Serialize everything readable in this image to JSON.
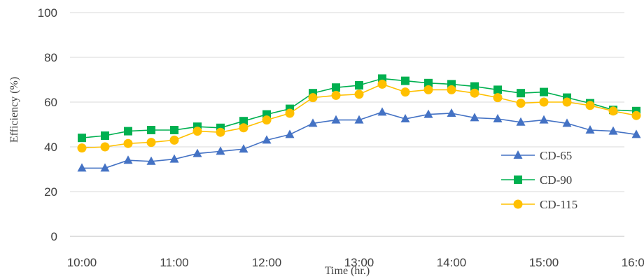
{
  "chart_data": {
    "type": "line",
    "xlabel": "Time (hr.)",
    "ylabel": "Efficiency (%)",
    "ylim": [
      0,
      100
    ],
    "yticks": [
      0,
      20,
      40,
      60,
      80,
      100
    ],
    "xlim": [
      10,
      16
    ],
    "xticks": [
      {
        "x": 10,
        "label": "10:00"
      },
      {
        "x": 11,
        "label": "11:00"
      },
      {
        "x": 12,
        "label": "12:00"
      },
      {
        "x": 13,
        "label": "13:00"
      },
      {
        "x": 14,
        "label": "14:00"
      },
      {
        "x": 15,
        "label": "15:00"
      },
      {
        "x": 16,
        "label": "16:00"
      }
    ],
    "grid": "horizontal",
    "legend_position": "bottom-right",
    "x": [
      10,
      10.25,
      10.5,
      10.75,
      11,
      11.25,
      11.5,
      11.75,
      12,
      12.25,
      12.5,
      12.75,
      13,
      13.25,
      13.5,
      13.75,
      14,
      14.25,
      14.5,
      14.75,
      15,
      15.25,
      15.5,
      15.75,
      16
    ],
    "series": [
      {
        "name": "CD-65",
        "color": "#4472C4",
        "marker": "triangle",
        "values": [
          30.5,
          30.5,
          34,
          33.5,
          34.5,
          37,
          38,
          39,
          43,
          45.5,
          50.5,
          52,
          52,
          55.5,
          52.5,
          54.5,
          55,
          53,
          52.5,
          51,
          52,
          50.5,
          47.5,
          47,
          45.5
        ]
      },
      {
        "name": "CD-90",
        "color": "#00B050",
        "marker": "square",
        "values": [
          44,
          45,
          47,
          47.5,
          47.5,
          49,
          48.5,
          51.5,
          54.5,
          57,
          64,
          66.5,
          67.5,
          70.5,
          69.5,
          68.5,
          68,
          67,
          65.5,
          64,
          64.5,
          62,
          59.5,
          56.5,
          56
        ]
      },
      {
        "name": "CD-115",
        "color": "#FFC000",
        "marker": "circle",
        "values": [
          39.5,
          40,
          41.5,
          42,
          43,
          47,
          46.5,
          48.5,
          52,
          55,
          62,
          63,
          63.5,
          68,
          64.5,
          65.5,
          65.5,
          64,
          62,
          59.5,
          60,
          60,
          58.5,
          56,
          54
        ]
      }
    ]
  }
}
